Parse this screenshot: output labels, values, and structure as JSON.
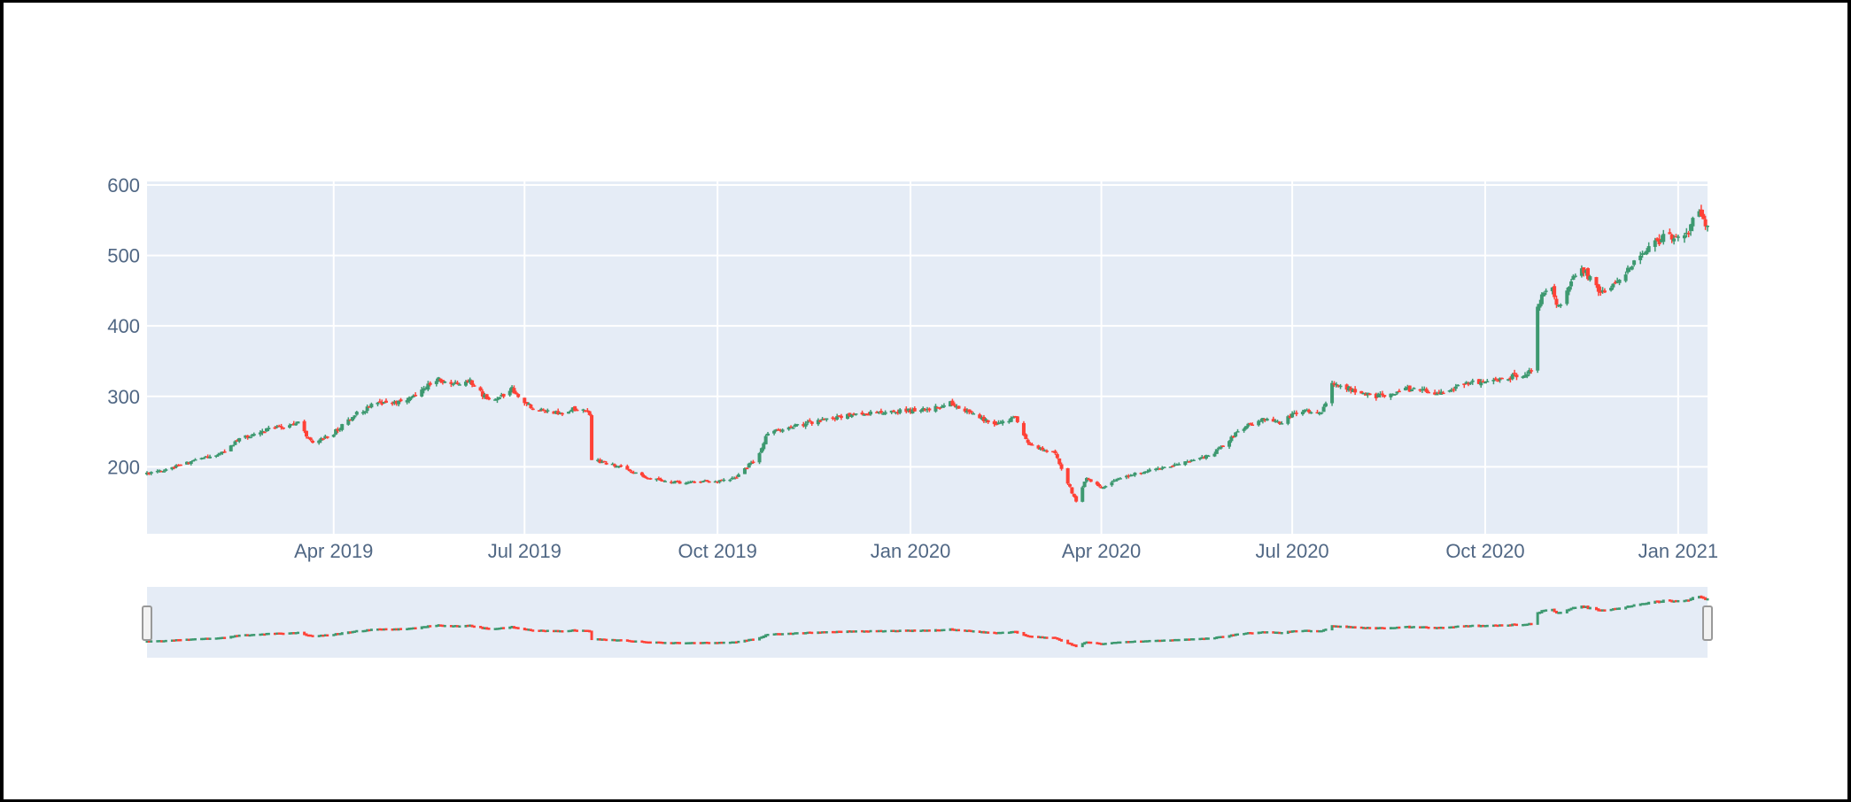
{
  "chart_data": {
    "type": "candlestick",
    "title": "",
    "xlabel": "",
    "ylabel": "",
    "x_range": [
      "2019-01-02",
      "2021-01-15"
    ],
    "ylim": [
      105,
      605
    ],
    "y_ticks": [
      200,
      300,
      400,
      500,
      600
    ],
    "x_ticks": [
      {
        "date": "2019-04-01",
        "label": "Apr 2019"
      },
      {
        "date": "2019-07-01",
        "label": "Jul 2019"
      },
      {
        "date": "2019-10-01",
        "label": "Oct 2019"
      },
      {
        "date": "2020-01-01",
        "label": "Jan 2020"
      },
      {
        "date": "2020-04-01",
        "label": "Apr 2020"
      },
      {
        "date": "2020-07-01",
        "label": "Jul 2020"
      },
      {
        "date": "2020-10-01",
        "label": "Oct 2020"
      },
      {
        "date": "2021-01-01",
        "label": "Jan 2021"
      }
    ],
    "price_path": [
      [
        "2019-01-02",
        190
      ],
      [
        "2019-01-10",
        195
      ],
      [
        "2019-01-25",
        210
      ],
      [
        "2019-02-08",
        220
      ],
      [
        "2019-02-15",
        240
      ],
      [
        "2019-02-28",
        252
      ],
      [
        "2019-03-15",
        262
      ],
      [
        "2019-03-22",
        233
      ],
      [
        "2019-04-01",
        248
      ],
      [
        "2019-04-10",
        272
      ],
      [
        "2019-04-20",
        288
      ],
      [
        "2019-05-01",
        292
      ],
      [
        "2019-05-10",
        300
      ],
      [
        "2019-05-20",
        325
      ],
      [
        "2019-05-28",
        318
      ],
      [
        "2019-06-05",
        322
      ],
      [
        "2019-06-15",
        290
      ],
      [
        "2019-06-25",
        310
      ],
      [
        "2019-07-05",
        282
      ],
      [
        "2019-07-15",
        276
      ],
      [
        "2019-07-25",
        282
      ],
      [
        "2019-08-01",
        276
      ],
      [
        "2019-08-02",
        210
      ],
      [
        "2019-08-15",
        200
      ],
      [
        "2019-08-30",
        183
      ],
      [
        "2019-09-15",
        177
      ],
      [
        "2019-10-01",
        180
      ],
      [
        "2019-10-10",
        185
      ],
      [
        "2019-10-20",
        215
      ],
      [
        "2019-10-25",
        248
      ],
      [
        "2019-11-10",
        260
      ],
      [
        "2019-11-25",
        270
      ],
      [
        "2019-12-10",
        276
      ],
      [
        "2019-12-25",
        278
      ],
      [
        "2020-01-10",
        283
      ],
      [
        "2020-01-20",
        290
      ],
      [
        "2020-01-30",
        275
      ],
      [
        "2020-02-10",
        260
      ],
      [
        "2020-02-20",
        270
      ],
      [
        "2020-02-26",
        232
      ],
      [
        "2020-03-10",
        220
      ],
      [
        "2020-03-20",
        150
      ],
      [
        "2020-03-25",
        185
      ],
      [
        "2020-04-01",
        170
      ],
      [
        "2020-04-10",
        185
      ],
      [
        "2020-04-25",
        195
      ],
      [
        "2020-05-10",
        205
      ],
      [
        "2020-05-25",
        220
      ],
      [
        "2020-06-05",
        250
      ],
      [
        "2020-06-15",
        268
      ],
      [
        "2020-06-25",
        262
      ],
      [
        "2020-07-05",
        280
      ],
      [
        "2020-07-15",
        275
      ],
      [
        "2020-07-20",
        318
      ],
      [
        "2020-08-01",
        308
      ],
      [
        "2020-08-10",
        300
      ],
      [
        "2020-08-25",
        310
      ],
      [
        "2020-09-10",
        305
      ],
      [
        "2020-09-25",
        320
      ],
      [
        "2020-10-10",
        325
      ],
      [
        "2020-10-23",
        335
      ],
      [
        "2020-10-26",
        430
      ],
      [
        "2020-11-01",
        460
      ],
      [
        "2020-11-05",
        425
      ],
      [
        "2020-11-15",
        488
      ],
      [
        "2020-11-25",
        445
      ],
      [
        "2020-12-05",
        470
      ],
      [
        "2020-12-15",
        505
      ],
      [
        "2020-12-25",
        525
      ],
      [
        "2021-01-05",
        530
      ],
      [
        "2021-01-10",
        565
      ],
      [
        "2021-01-15",
        540
      ]
    ]
  },
  "colors": {
    "increasing": "#3D9970",
    "decreasing": "#FF4136",
    "plot_bg": "#E5ECF6",
    "grid": "#FFFFFF",
    "tick_text": "#506784"
  }
}
